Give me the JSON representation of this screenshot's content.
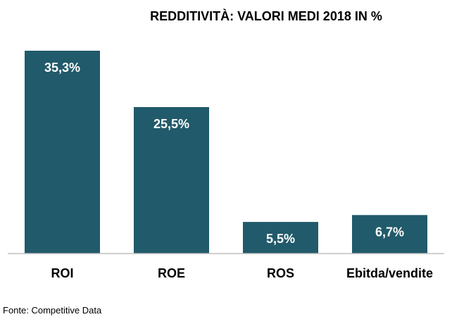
{
  "chart_data": {
    "type": "bar",
    "title": "REDDITIVITÀ: VALORI MEDI 2018 IN %",
    "categories": [
      "ROI",
      "ROE",
      "ROS",
      "Ebitda/vendite"
    ],
    "values": [
      35.3,
      25.5,
      5.5,
      6.7
    ],
    "data_labels": [
      "35,3%",
      "25,5%",
      "5,5%",
      "6,7%"
    ],
    "xlabel": "",
    "ylabel": "",
    "ylim": [
      0,
      36
    ],
    "grid": false,
    "legend": "none",
    "bar_color": "#215a6a",
    "axis_color": "#bfbfbf"
  },
  "source": "Fonte: Competitive Data"
}
